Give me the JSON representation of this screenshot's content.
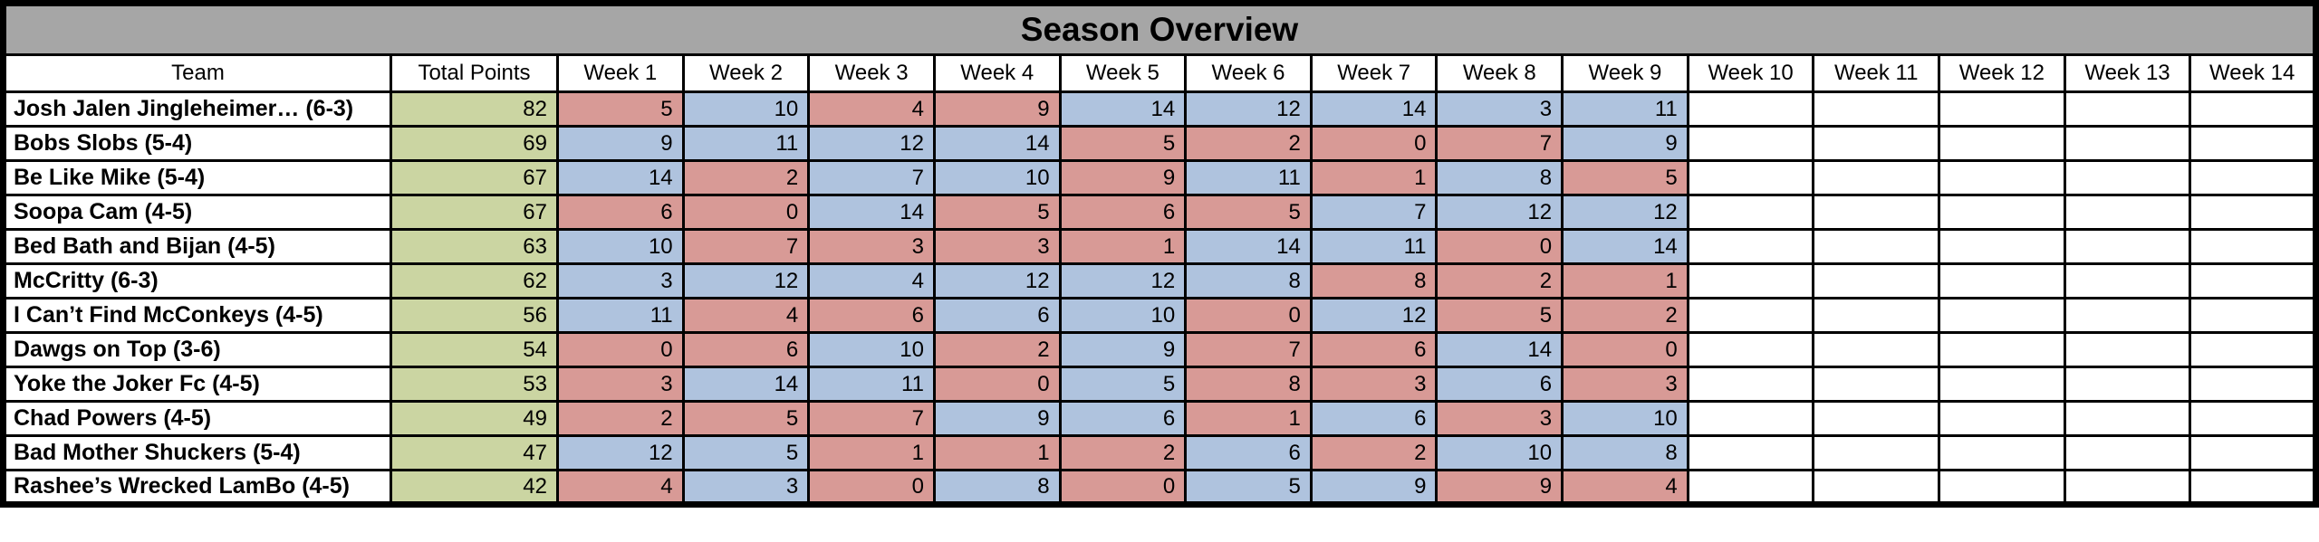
{
  "title": "Season Overview",
  "columns": {
    "team": "Team",
    "total": "Total Points",
    "weeks": [
      "Week 1",
      "Week 2",
      "Week 3",
      "Week 4",
      "Week 5",
      "Week 6",
      "Week 7",
      "Week 8",
      "Week 9",
      "Week 10",
      "Week 11",
      "Week 12",
      "Week 13",
      "Week 14"
    ]
  },
  "weeks_total": 14,
  "weeks_played": 9,
  "colors": {
    "title_bg": "#A6A6A6",
    "total_bg": "#CBD5A2",
    "win_bg": "#AFC3DE",
    "loss_bg": "#D89A96",
    "border": "#000000",
    "text": "#000000"
  },
  "teams": [
    {
      "name": "Josh Jalen Jingleheimer… (6-3)",
      "total": 82,
      "weeks": [
        {
          "value": 5,
          "result": "loss"
        },
        {
          "value": 10,
          "result": "win"
        },
        {
          "value": 4,
          "result": "loss"
        },
        {
          "value": 9,
          "result": "loss"
        },
        {
          "value": 14,
          "result": "win"
        },
        {
          "value": 12,
          "result": "win"
        },
        {
          "value": 14,
          "result": "win"
        },
        {
          "value": 3,
          "result": "win"
        },
        {
          "value": 11,
          "result": "win"
        }
      ]
    },
    {
      "name": "Bobs Slobs (5-4)",
      "total": 69,
      "weeks": [
        {
          "value": 9,
          "result": "win"
        },
        {
          "value": 11,
          "result": "win"
        },
        {
          "value": 12,
          "result": "win"
        },
        {
          "value": 14,
          "result": "win"
        },
        {
          "value": 5,
          "result": "loss"
        },
        {
          "value": 2,
          "result": "loss"
        },
        {
          "value": 0,
          "result": "loss"
        },
        {
          "value": 7,
          "result": "loss"
        },
        {
          "value": 9,
          "result": "win"
        }
      ]
    },
    {
      "name": "Be Like Mike (5-4)",
      "total": 67,
      "weeks": [
        {
          "value": 14,
          "result": "win"
        },
        {
          "value": 2,
          "result": "loss"
        },
        {
          "value": 7,
          "result": "win"
        },
        {
          "value": 10,
          "result": "win"
        },
        {
          "value": 9,
          "result": "loss"
        },
        {
          "value": 11,
          "result": "win"
        },
        {
          "value": 1,
          "result": "loss"
        },
        {
          "value": 8,
          "result": "win"
        },
        {
          "value": 5,
          "result": "loss"
        }
      ]
    },
    {
      "name": "Soopa Cam (4-5)",
      "total": 67,
      "weeks": [
        {
          "value": 6,
          "result": "loss"
        },
        {
          "value": 0,
          "result": "loss"
        },
        {
          "value": 14,
          "result": "win"
        },
        {
          "value": 5,
          "result": "loss"
        },
        {
          "value": 6,
          "result": "loss"
        },
        {
          "value": 5,
          "result": "loss"
        },
        {
          "value": 7,
          "result": "win"
        },
        {
          "value": 12,
          "result": "win"
        },
        {
          "value": 12,
          "result": "win"
        }
      ]
    },
    {
      "name": "Bed Bath and Bijan (4-5)",
      "total": 63,
      "weeks": [
        {
          "value": 10,
          "result": "win"
        },
        {
          "value": 7,
          "result": "loss"
        },
        {
          "value": 3,
          "result": "loss"
        },
        {
          "value": 3,
          "result": "loss"
        },
        {
          "value": 1,
          "result": "loss"
        },
        {
          "value": 14,
          "result": "win"
        },
        {
          "value": 11,
          "result": "win"
        },
        {
          "value": 0,
          "result": "loss"
        },
        {
          "value": 14,
          "result": "win"
        }
      ]
    },
    {
      "name": "McCritty (6-3)",
      "total": 62,
      "weeks": [
        {
          "value": 3,
          "result": "win"
        },
        {
          "value": 12,
          "result": "win"
        },
        {
          "value": 4,
          "result": "win"
        },
        {
          "value": 12,
          "result": "win"
        },
        {
          "value": 12,
          "result": "win"
        },
        {
          "value": 8,
          "result": "win"
        },
        {
          "value": 8,
          "result": "loss"
        },
        {
          "value": 2,
          "result": "loss"
        },
        {
          "value": 1,
          "result": "loss"
        }
      ]
    },
    {
      "name": "I Can’t Find McConkeys (4-5)",
      "total": 56,
      "weeks": [
        {
          "value": 11,
          "result": "win"
        },
        {
          "value": 4,
          "result": "loss"
        },
        {
          "value": 6,
          "result": "loss"
        },
        {
          "value": 6,
          "result": "win"
        },
        {
          "value": 10,
          "result": "win"
        },
        {
          "value": 0,
          "result": "loss"
        },
        {
          "value": 12,
          "result": "win"
        },
        {
          "value": 5,
          "result": "loss"
        },
        {
          "value": 2,
          "result": "loss"
        }
      ]
    },
    {
      "name": "Dawgs on Top (3-6)",
      "total": 54,
      "weeks": [
        {
          "value": 0,
          "result": "loss"
        },
        {
          "value": 6,
          "result": "loss"
        },
        {
          "value": 10,
          "result": "win"
        },
        {
          "value": 2,
          "result": "loss"
        },
        {
          "value": 9,
          "result": "win"
        },
        {
          "value": 7,
          "result": "loss"
        },
        {
          "value": 6,
          "result": "loss"
        },
        {
          "value": 14,
          "result": "win"
        },
        {
          "value": 0,
          "result": "loss"
        }
      ]
    },
    {
      "name": "Yoke the Joker Fc (4-5)",
      "total": 53,
      "weeks": [
        {
          "value": 3,
          "result": "loss"
        },
        {
          "value": 14,
          "result": "win"
        },
        {
          "value": 11,
          "result": "win"
        },
        {
          "value": 0,
          "result": "loss"
        },
        {
          "value": 5,
          "result": "win"
        },
        {
          "value": 8,
          "result": "loss"
        },
        {
          "value": 3,
          "result": "loss"
        },
        {
          "value": 6,
          "result": "win"
        },
        {
          "value": 3,
          "result": "loss"
        }
      ]
    },
    {
      "name": "Chad Powers (4-5)",
      "total": 49,
      "weeks": [
        {
          "value": 2,
          "result": "loss"
        },
        {
          "value": 5,
          "result": "loss"
        },
        {
          "value": 7,
          "result": "loss"
        },
        {
          "value": 9,
          "result": "win"
        },
        {
          "value": 6,
          "result": "win"
        },
        {
          "value": 1,
          "result": "loss"
        },
        {
          "value": 6,
          "result": "win"
        },
        {
          "value": 3,
          "result": "loss"
        },
        {
          "value": 10,
          "result": "win"
        }
      ]
    },
    {
      "name": "Bad Mother Shuckers (5-4)",
      "total": 47,
      "weeks": [
        {
          "value": 12,
          "result": "win"
        },
        {
          "value": 5,
          "result": "win"
        },
        {
          "value": 1,
          "result": "loss"
        },
        {
          "value": 1,
          "result": "loss"
        },
        {
          "value": 2,
          "result": "loss"
        },
        {
          "value": 6,
          "result": "win"
        },
        {
          "value": 2,
          "result": "loss"
        },
        {
          "value": 10,
          "result": "win"
        },
        {
          "value": 8,
          "result": "win"
        }
      ]
    },
    {
      "name": "Rashee’s Wrecked LamBo (4-5)",
      "total": 42,
      "weeks": [
        {
          "value": 4,
          "result": "loss"
        },
        {
          "value": 3,
          "result": "win"
        },
        {
          "value": 0,
          "result": "loss"
        },
        {
          "value": 8,
          "result": "win"
        },
        {
          "value": 0,
          "result": "loss"
        },
        {
          "value": 5,
          "result": "win"
        },
        {
          "value": 9,
          "result": "win"
        },
        {
          "value": 9,
          "result": "loss"
        },
        {
          "value": 4,
          "result": "loss"
        }
      ]
    }
  ],
  "chart_data": {
    "type": "table",
    "title": "Season Overview",
    "columns": [
      "Team",
      "Total Points",
      "Week 1",
      "Week 2",
      "Week 3",
      "Week 4",
      "Week 5",
      "Week 6",
      "Week 7",
      "Week 8",
      "Week 9",
      "Week 10",
      "Week 11",
      "Week 12",
      "Week 13",
      "Week 14"
    ],
    "rows": [
      [
        "Josh Jalen Jingleheimer… (6-3)",
        82,
        5,
        10,
        4,
        9,
        14,
        12,
        14,
        3,
        11,
        "",
        "",
        "",
        "",
        ""
      ],
      [
        "Bobs Slobs (5-4)",
        69,
        9,
        11,
        12,
        14,
        5,
        2,
        0,
        7,
        9,
        "",
        "",
        "",
        "",
        ""
      ],
      [
        "Be Like Mike (5-4)",
        67,
        14,
        2,
        7,
        10,
        9,
        11,
        1,
        8,
        5,
        "",
        "",
        "",
        "",
        ""
      ],
      [
        "Soopa Cam (4-5)",
        67,
        6,
        0,
        14,
        5,
        6,
        5,
        7,
        12,
        12,
        "",
        "",
        "",
        "",
        ""
      ],
      [
        "Bed Bath and Bijan (4-5)",
        63,
        10,
        7,
        3,
        3,
        1,
        14,
        11,
        0,
        14,
        "",
        "",
        "",
        "",
        ""
      ],
      [
        "McCritty (6-3)",
        62,
        3,
        12,
        4,
        12,
        12,
        8,
        8,
        2,
        1,
        "",
        "",
        "",
        "",
        ""
      ],
      [
        "I Can’t Find McConkeys (4-5)",
        56,
        11,
        4,
        6,
        6,
        10,
        0,
        12,
        5,
        2,
        "",
        "",
        "",
        "",
        ""
      ],
      [
        "Dawgs on Top (3-6)",
        54,
        0,
        6,
        10,
        2,
        9,
        7,
        6,
        14,
        0,
        "",
        "",
        "",
        "",
        ""
      ],
      [
        "Yoke the Joker Fc (4-5)",
        53,
        3,
        14,
        11,
        0,
        5,
        8,
        3,
        6,
        3,
        "",
        "",
        "",
        "",
        ""
      ],
      [
        "Chad Powers (4-5)",
        49,
        2,
        5,
        7,
        9,
        6,
        1,
        6,
        3,
        10,
        "",
        "",
        "",
        "",
        ""
      ],
      [
        "Bad Mother Shuckers (5-4)",
        47,
        12,
        5,
        1,
        1,
        2,
        6,
        2,
        10,
        8,
        "",
        "",
        "",
        "",
        ""
      ],
      [
        "Rashee’s Wrecked LamBo (4-5)",
        42,
        4,
        3,
        0,
        8,
        0,
        5,
        9,
        9,
        4,
        "",
        "",
        "",
        "",
        ""
      ]
    ],
    "cell_color_legend": {
      "green": "Total Points column",
      "blue": "weekly win",
      "red": "weekly loss",
      "white": "week not yet played"
    }
  }
}
